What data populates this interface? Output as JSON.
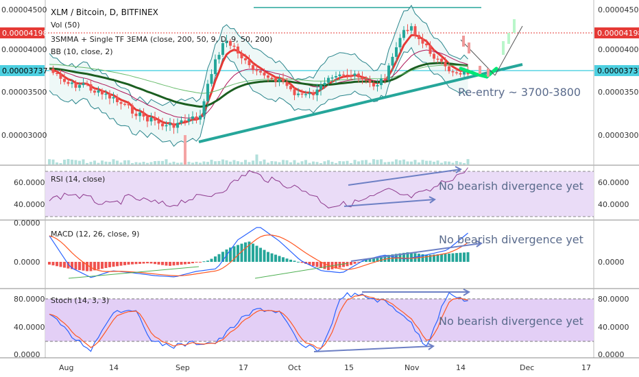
{
  "chart_data": {
    "type": "candlestick",
    "title": "XLM / Bitcoin, D, BITFINEX",
    "studies": {
      "volume": "Vol (50)",
      "ma": "3SMMA + Single TF 3EMA (close, 200, 50, 9, D, 9, 50, 200)",
      "bb": "BB (10, close, 2)",
      "rsi": "RSI (14, close)",
      "macd": "MACD (12, 26, close, 9)",
      "stoch": "Stoch (14, 3, 3)"
    },
    "x_ticks": [
      "Aug",
      "14",
      "Sep",
      "17",
      "Oct",
      "15",
      "Nov",
      "14",
      "Dec",
      "17"
    ],
    "price_axis": {
      "ticks": [
        "0.00004500",
        "0.00004000",
        "0.00003500",
        "0.00003000"
      ],
      "last_price": "0.00004198",
      "marker_price": "0.00003737"
    },
    "rsi_axis": {
      "ticks": [
        "60.0000",
        "40.0000"
      ]
    },
    "macd_axis": {
      "ticks": [
        "0.0000"
      ],
      "top_tick": "0.0000"
    },
    "stoch_axis": {
      "ticks": [
        "80.0000",
        "40.0000"
      ],
      "bottom_tick": "0.0000"
    },
    "annotations": {
      "reentry": "Re-entry ~ 3700-3800",
      "rsi_note": "No bearish divergence yet",
      "macd_note": "No bearish divergence yet",
      "stoch_note": "No bearish divergence yet"
    },
    "colors": {
      "up": "#26a69a",
      "down": "#ef5350",
      "accent": "#5f7dc8",
      "last": "#e53935",
      "marker": "#00bcd4"
    }
  }
}
